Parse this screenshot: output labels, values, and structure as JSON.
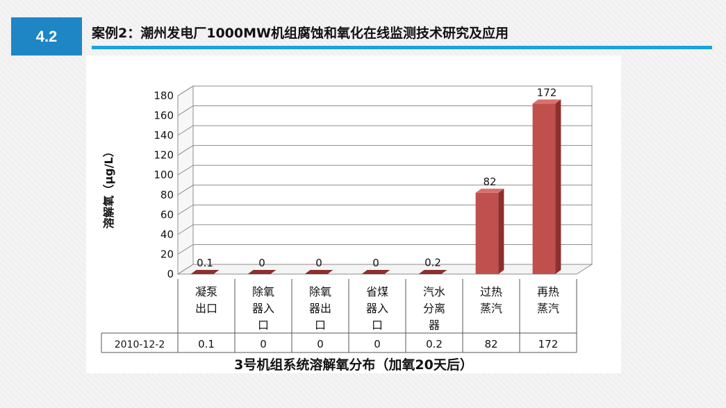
{
  "header": {
    "section_number": "4.2",
    "title": "案例2：潮州发电厂1000MW机组腐蚀和氧化在线监测技术研究及应用"
  },
  "chart_data": {
    "type": "bar",
    "title": "3号机组系统溶解氧分布（加氧20天后）",
    "xlabel": "",
    "ylabel": "溶解氧（μg/L）",
    "ylim": [
      0,
      180
    ],
    "yticks": [
      0,
      20,
      40,
      60,
      80,
      100,
      120,
      140,
      160,
      180
    ],
    "grid": true,
    "legend": "none",
    "categories": [
      [
        "凝泵",
        "出口"
      ],
      [
        "除氧",
        "器入",
        "口"
      ],
      [
        "除氧",
        "器出",
        "口"
      ],
      [
        "省煤",
        "器入",
        "口"
      ],
      [
        "汽水",
        "分离",
        "器"
      ],
      [
        "过热",
        "蒸汽"
      ],
      [
        "再热",
        "蒸汽"
      ]
    ],
    "series": [
      {
        "name": "2010-12-2",
        "values": [
          0.1,
          0,
          0,
          0,
          0.2,
          82,
          172
        ],
        "labels": [
          "0.1",
          "0",
          "0",
          "0",
          "0.2",
          "82",
          "172"
        ]
      }
    ],
    "colors": {
      "bar_front": "#c0504d",
      "bar_side": "#8c2f2d",
      "bar_top": "#d9706c",
      "grid": "#8c8c8c"
    }
  }
}
